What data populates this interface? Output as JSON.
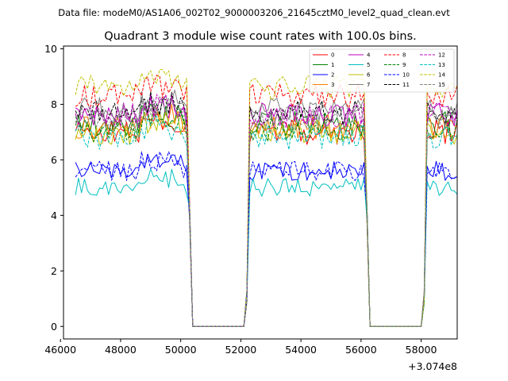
{
  "suptitle": "Data file: modeM0/AS1A06_002T02_9000003206_21645cztM0_level2_quad_clean.evt",
  "chart_data": {
    "type": "line",
    "title": "Quadrant 3 module wise count rates with 100.0s bins.",
    "xlabel": "",
    "ylabel": "",
    "x_offset_text": "+3.074e8",
    "xlim": [
      46100,
      59200
    ],
    "ylim": [
      -0.45,
      10.1
    ],
    "xticks": [
      46000,
      48000,
      50000,
      52000,
      54000,
      56000,
      58000
    ],
    "xtick_labels": [
      "46000",
      "48000",
      "50000",
      "52000",
      "54000",
      "56000",
      "58000"
    ],
    "yticks": [
      0,
      2,
      4,
      6,
      8,
      10
    ],
    "ytick_labels": [
      "0",
      "2",
      "4",
      "6",
      "8",
      "10"
    ],
    "grid": false,
    "legend_position": "top-right",
    "legend_columns": 4,
    "bin_seconds": 100,
    "segments": [
      {
        "start": 46500,
        "end": 50200
      },
      {
        "start": 52300,
        "end": 56100
      },
      {
        "start": 58200,
        "end": 59200
      }
    ],
    "gap_value": 0,
    "series": [
      {
        "name": "0",
        "color": "#ff0000",
        "dash": "solid",
        "level": 7.0
      },
      {
        "name": "1",
        "color": "#008000",
        "dash": "solid",
        "level": 7.3
      },
      {
        "name": "2",
        "color": "#0000ff",
        "dash": "solid",
        "level": 5.6
      },
      {
        "name": "3",
        "color": "#ff8000",
        "dash": "solid",
        "level": 7.2
      },
      {
        "name": "4",
        "color": "#bf00bf",
        "dash": "solid",
        "level": 7.6
      },
      {
        "name": "5",
        "color": "#00bfbf",
        "dash": "solid",
        "level": 5.0
      },
      {
        "name": "6",
        "color": "#bfbf00",
        "dash": "solid",
        "level": 7.0
      },
      {
        "name": "7",
        "color": "#808080",
        "dash": "solid",
        "level": 7.8
      },
      {
        "name": "8",
        "color": "#ff0000",
        "dash": "dashed",
        "level": 8.3
      },
      {
        "name": "9",
        "color": "#008000",
        "dash": "dashed",
        "level": 7.1
      },
      {
        "name": "10",
        "color": "#0000ff",
        "dash": "dashed",
        "level": 5.6
      },
      {
        "name": "11",
        "color": "#000000",
        "dash": "dashed",
        "level": 7.7
      },
      {
        "name": "12",
        "color": "#bf00bf",
        "dash": "dashed",
        "level": 7.6
      },
      {
        "name": "13",
        "color": "#00bfbf",
        "dash": "dashed",
        "level": 6.8
      },
      {
        "name": "14",
        "color": "#bfbf00",
        "dash": "dashed",
        "level": 8.6
      },
      {
        "name": "15",
        "color": "#808080",
        "dash": "dashed",
        "level": 7.5
      }
    ]
  }
}
